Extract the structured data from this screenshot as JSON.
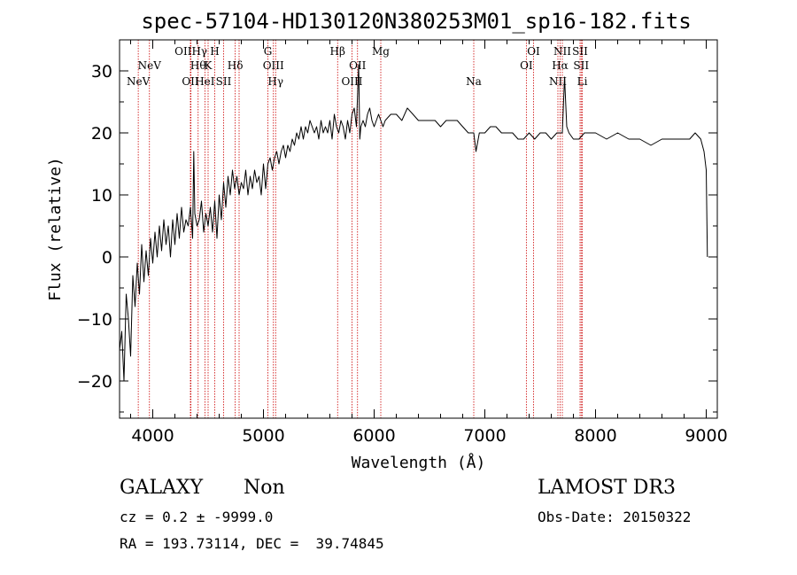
{
  "chart_data": {
    "type": "line",
    "title": "spec-57104-HD130120N380253M01_sp16-182.fits",
    "xlabel": "Wavelength (Å)",
    "ylabel": "Flux (relative)",
    "xlim": [
      3700,
      9100
    ],
    "ylim": [
      -26,
      35
    ],
    "xticks": [
      4000,
      5000,
      6000,
      7000,
      8000,
      9000
    ],
    "yticks": [
      -20,
      -10,
      0,
      10,
      20,
      30
    ],
    "grid": false,
    "series": [
      {
        "x": [
          3700,
          3720,
          3740,
          3760,
          3780,
          3800,
          3820,
          3840,
          3860,
          3880,
          3900,
          3920,
          3940,
          3960,
          3980,
          4000,
          4020,
          4040,
          4060,
          4080,
          4100,
          4120,
          4140,
          4160,
          4180,
          4200,
          4220,
          4240,
          4260,
          4280,
          4300,
          4320,
          4340,
          4360,
          4370,
          4380,
          4400,
          4420,
          4440,
          4460,
          4480,
          4500,
          4520,
          4540,
          4560,
          4580,
          4600,
          4620,
          4640,
          4660,
          4680,
          4700,
          4720,
          4740,
          4760,
          4780,
          4800,
          4820,
          4840,
          4860,
          4880,
          4900,
          4920,
          4940,
          4960,
          4980,
          5000,
          5020,
          5040,
          5060,
          5080,
          5100,
          5120,
          5140,
          5160,
          5180,
          5200,
          5220,
          5240,
          5260,
          5280,
          5300,
          5320,
          5340,
          5360,
          5380,
          5400,
          5420,
          5440,
          5460,
          5480,
          5500,
          5520,
          5540,
          5560,
          5580,
          5600,
          5620,
          5640,
          5660,
          5680,
          5700,
          5720,
          5740,
          5760,
          5780,
          5800,
          5820,
          5840,
          5860,
          5870,
          5880,
          5900,
          5920,
          5940,
          5960,
          5980,
          6000,
          6020,
          6040,
          6060,
          6080,
          6100,
          6150,
          6200,
          6250,
          6300,
          6350,
          6400,
          6450,
          6500,
          6550,
          6600,
          6650,
          6700,
          6750,
          6800,
          6850,
          6900,
          6920,
          6950,
          7000,
          7050,
          7100,
          7150,
          7200,
          7250,
          7300,
          7350,
          7400,
          7450,
          7500,
          7550,
          7600,
          7650,
          7680,
          7700,
          7720,
          7740,
          7760,
          7800,
          7850,
          7900,
          7950,
          8000,
          8100,
          8200,
          8300,
          8400,
          8500,
          8600,
          8700,
          8800,
          8850,
          8900,
          8950,
          8980,
          9000,
          9010
        ],
        "y": [
          -15,
          -12,
          -20,
          -6,
          -10,
          -16,
          -3,
          -8,
          -1,
          -6,
          2,
          -4,
          1,
          -3,
          3,
          -1,
          4,
          0,
          5,
          1,
          6,
          2,
          5,
          0,
          6,
          2,
          7,
          3,
          8,
          4,
          6,
          5,
          8,
          3,
          17,
          7,
          5,
          6,
          9,
          4,
          7,
          5,
          8,
          4,
          9,
          3,
          10,
          6,
          12,
          8,
          13,
          10,
          14,
          11,
          13,
          10,
          12,
          11,
          14,
          10,
          13,
          11,
          14,
          12,
          13,
          10,
          15,
          11,
          15,
          16,
          14,
          16,
          17,
          15,
          17,
          18,
          16,
          18,
          17,
          19,
          18,
          20,
          19,
          21,
          19,
          21,
          20,
          22,
          21,
          20,
          21,
          19,
          22,
          20,
          21,
          20,
          22,
          19,
          23,
          21,
          20,
          22,
          21,
          19,
          22,
          20,
          23,
          24,
          21,
          31,
          19,
          21,
          22,
          21,
          23,
          24,
          22,
          21,
          22,
          23,
          22,
          21,
          22,
          23,
          23,
          22,
          24,
          23,
          22,
          22,
          22,
          22,
          21,
          22,
          22,
          22,
          21,
          20,
          20,
          17,
          20,
          20,
          21,
          21,
          20,
          20,
          20,
          19,
          19,
          20,
          19,
          20,
          20,
          19,
          20,
          20,
          20,
          29,
          21,
          20,
          19,
          19,
          20,
          20,
          20,
          19,
          20,
          19,
          19,
          18,
          19,
          19,
          19,
          19,
          20,
          19,
          17,
          14,
          0
        ]
      }
    ],
    "emission_lines": [
      {
        "wavelength": 3869,
        "label": "NeV",
        "row": 3
      },
      {
        "wavelength": 3970,
        "label": "NeV",
        "row": 2
      },
      {
        "wavelength": 4340,
        "label": "OII",
        "row": 3
      },
      {
        "wavelength": 4345,
        "label": "OIIHγ",
        "row": 1
      },
      {
        "wavelength": 4410,
        "label": "Hθ",
        "row": 2
      },
      {
        "wavelength": 4471,
        "label": "HeI",
        "row": 3
      },
      {
        "wavelength": 4500,
        "label": "K",
        "row": 2
      },
      {
        "wavelength": 4560,
        "label": "H",
        "row": 1
      },
      {
        "wavelength": 4640,
        "label": "SII",
        "row": 3
      },
      {
        "wavelength": 4745,
        "label": "Hδ",
        "row": 2
      },
      {
        "wavelength": 4780,
        "label": "",
        "row": 0
      },
      {
        "wavelength": 5040,
        "label": "G",
        "row": 1
      },
      {
        "wavelength": 5090,
        "label": "OIII",
        "row": 2
      },
      {
        "wavelength": 5110,
        "label": "Hγ",
        "row": 3
      },
      {
        "wavelength": 5670,
        "label": "Hβ",
        "row": 1
      },
      {
        "wavelength": 5800,
        "label": "OIII",
        "row": 3
      },
      {
        "wavelength": 5850,
        "label": "OII",
        "row": 2
      },
      {
        "wavelength": 6060,
        "label": "Mg",
        "row": 1
      },
      {
        "wavelength": 6900,
        "label": "Na",
        "row": 3
      },
      {
        "wavelength": 7375,
        "label": "OI",
        "row": 2
      },
      {
        "wavelength": 7440,
        "label": "OI",
        "row": 1
      },
      {
        "wavelength": 7660,
        "label": "NII",
        "row": 3
      },
      {
        "wavelength": 7680,
        "label": "Hα",
        "row": 2
      },
      {
        "wavelength": 7700,
        "label": "NII",
        "row": 1
      },
      {
        "wavelength": 7860,
        "label": "SII",
        "row": 1
      },
      {
        "wavelength": 7870,
        "label": "SII",
        "row": 2
      },
      {
        "wavelength": 7880,
        "label": "Li",
        "row": 3
      }
    ],
    "colors": {
      "spectrum": "#000000",
      "lines": "#cc0000",
      "axes": "#000000"
    }
  },
  "info": {
    "class": "GALAXY",
    "subclass": "Non",
    "survey": "LAMOST DR3",
    "cz": "cz = 0.2 ± -9999.0",
    "obs_date": "Obs-Date: 20150322",
    "radec": "RA = 193.73114, DEC =  39.74845"
  }
}
